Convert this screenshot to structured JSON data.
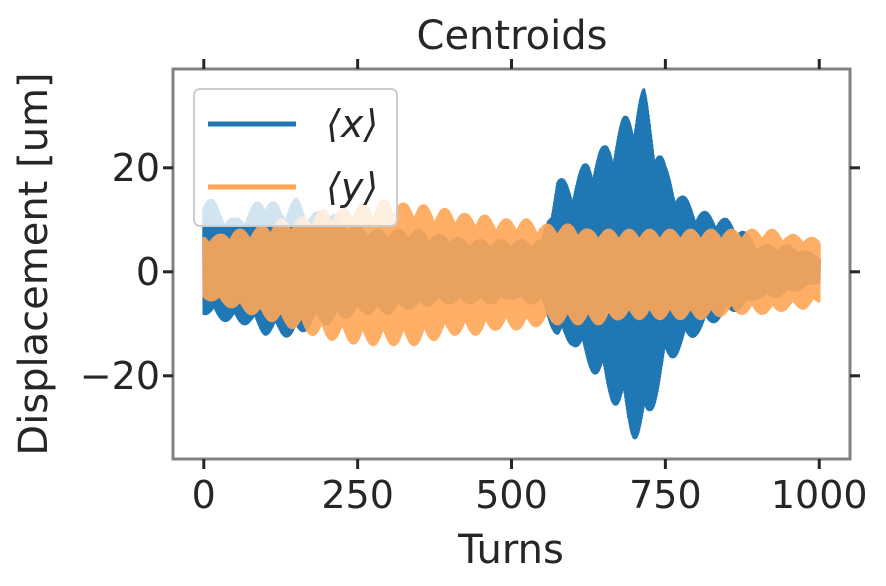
{
  "chart_data": {
    "type": "line",
    "title": "Centroids",
    "xlabel": "Turns",
    "ylabel": "Displacement [um]",
    "xlim": [
      -50,
      1050
    ],
    "ylim": [
      -36,
      39
    ],
    "xticks": [
      0,
      250,
      500,
      750,
      1000
    ],
    "xtick_labels": [
      "0",
      "250",
      "500",
      "750",
      "1000"
    ],
    "yticks": [
      -20,
      0,
      20
    ],
    "ytick_labels": [
      "−20",
      "0",
      "20"
    ],
    "grid": false,
    "legend_position": "top-left",
    "series": [
      {
        "name": "⟨x⟩",
        "color": "#1f77b4",
        "x": [
          0,
          25,
          50,
          75,
          100,
          125,
          150,
          175,
          200,
          225,
          250,
          275,
          300,
          325,
          350,
          375,
          400,
          425,
          450,
          475,
          500,
          525,
          550,
          575,
          600,
          625,
          650,
          675,
          700,
          715,
          725,
          750,
          775,
          800,
          825,
          850,
          875,
          900,
          925,
          950,
          975,
          1000
        ],
        "upper": [
          16,
          12,
          10,
          12,
          15,
          12,
          14,
          11,
          12,
          10,
          9,
          8,
          8,
          8,
          8,
          7,
          7,
          6,
          6,
          6,
          6,
          6,
          6,
          18,
          17,
          22,
          24,
          28,
          33,
          35,
          30,
          20,
          15,
          12,
          11,
          10,
          8,
          5,
          5,
          5,
          4,
          3
        ],
        "lower": [
          -8,
          -9,
          -10,
          -10,
          -12,
          -12,
          -13,
          -10,
          -10,
          -9,
          -8,
          -8,
          -8,
          -7,
          -7,
          -6,
          -6,
          -6,
          -6,
          -6,
          -5,
          -6,
          -6,
          -13,
          -14,
          -18,
          -22,
          -27,
          -32,
          -33,
          -28,
          -18,
          -15,
          -12,
          -10,
          -8,
          -7,
          -5,
          -5,
          -4,
          -3,
          -2
        ]
      },
      {
        "name": "⟨y⟩",
        "color": "#ffa555",
        "x": [
          0,
          25,
          50,
          75,
          100,
          125,
          150,
          175,
          200,
          225,
          250,
          275,
          300,
          325,
          350,
          375,
          400,
          425,
          450,
          475,
          500,
          525,
          550,
          575,
          600,
          625,
          650,
          675,
          700,
          725,
          750,
          775,
          800,
          825,
          850,
          875,
          900,
          925,
          950,
          975,
          1000
        ],
        "upper": [
          7,
          7,
          8,
          8,
          9,
          10,
          10,
          11,
          12,
          12,
          13,
          13,
          14,
          13,
          13,
          12,
          12,
          11,
          11,
          10,
          10,
          10,
          9,
          9,
          9,
          8,
          8,
          8,
          8,
          8,
          8,
          8,
          8,
          8,
          8,
          8,
          8,
          8,
          7,
          7,
          6
        ],
        "lower": [
          -5,
          -6,
          -7,
          -8,
          -9,
          -10,
          -11,
          -12,
          -13,
          -13,
          -14,
          -14,
          -14,
          -14,
          -14,
          -13,
          -12,
          -12,
          -12,
          -11,
          -11,
          -11,
          -10,
          -10,
          -10,
          -10,
          -10,
          -9,
          -9,
          -9,
          -9,
          -9,
          -9,
          -9,
          -8,
          -8,
          -8,
          -8,
          -7,
          -7,
          -6
        ]
      }
    ]
  }
}
